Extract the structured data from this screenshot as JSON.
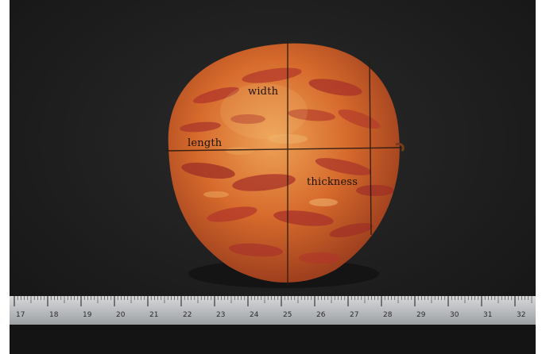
{
  "labels": {
    "width": "width",
    "length": "length",
    "thickness": "thickness"
  },
  "ruler_numbers": [
    "17",
    "18",
    "19",
    "20",
    "21",
    "22",
    "23",
    "24",
    "25",
    "26",
    "27",
    "28",
    "29",
    "30",
    "31",
    "32"
  ],
  "colors": {
    "background": "#1d1d1d",
    "fruit_base": "#d9702e",
    "fruit_red": "#b0352a",
    "fruit_light": "#eaa055",
    "lines": "#2a1a10",
    "ruler": "#c9cbcd",
    "ruler_text": "#2a2a2a"
  }
}
